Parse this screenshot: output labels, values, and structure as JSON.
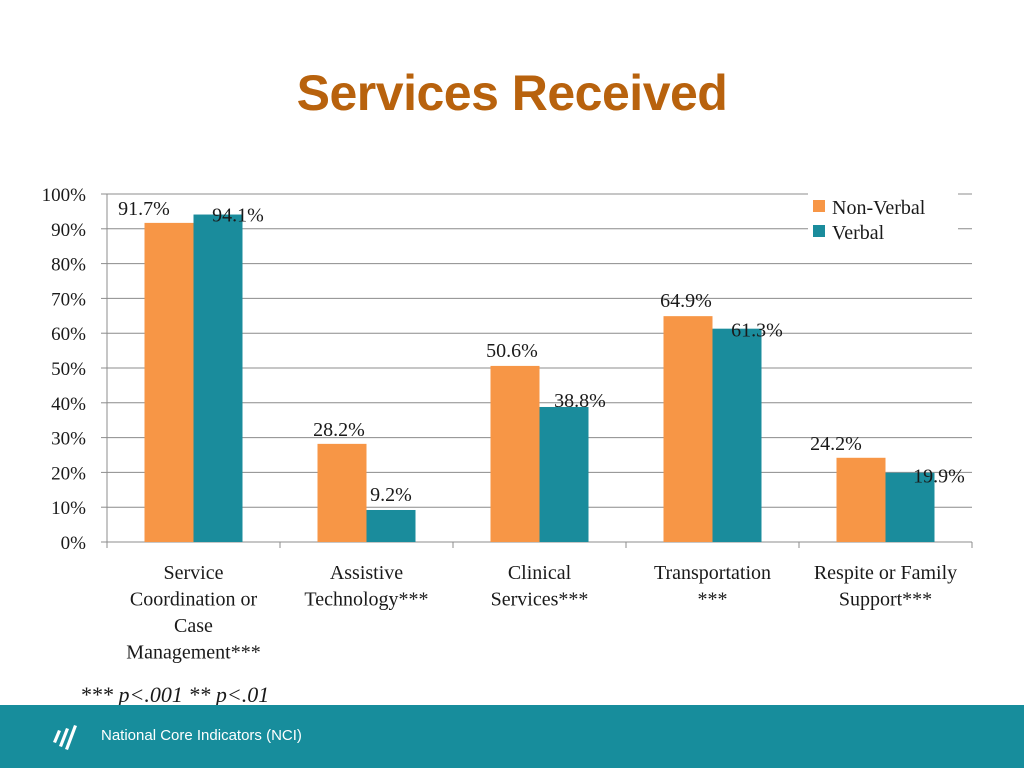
{
  "slide": {
    "title": "Services Received",
    "title_color": "#b8620d",
    "footnote": "*** p<.001 ** p<.01"
  },
  "footer": {
    "text": "National Core Indicators (NCI)",
    "bar_color": "#178d9c",
    "logo_icon": "nci-logo-icon"
  },
  "chart_data": {
    "type": "bar",
    "categories": [
      [
        "Service",
        "Coordination or",
        "Case",
        "Management***"
      ],
      [
        "Assistive",
        "Technology***"
      ],
      [
        "Clinical",
        "Services***"
      ],
      [
        "Transportation",
        "***"
      ],
      [
        "Respite or Family",
        "Support***"
      ]
    ],
    "series": [
      {
        "name": "Non-Verbal",
        "color": "#f79646",
        "values": [
          91.7,
          28.2,
          50.6,
          64.9,
          24.2
        ],
        "labels": [
          "91.7%",
          "28.2%",
          "50.6%",
          "64.9%",
          "24.2%"
        ]
      },
      {
        "name": "Verbal",
        "color": "#1a8c9c",
        "values": [
          94.1,
          9.2,
          38.8,
          61.3,
          19.9
        ],
        "labels": [
          "94.1%",
          "9.2%",
          "38.8%",
          "61.3%",
          "19.9%"
        ]
      }
    ],
    "yticks": [
      "0%",
      "10%",
      "20%",
      "30%",
      "40%",
      "50%",
      "60%",
      "70%",
      "80%",
      "90%",
      "100%"
    ],
    "ylim": [
      0,
      100
    ],
    "grid": true,
    "legend_position": "top-right"
  }
}
